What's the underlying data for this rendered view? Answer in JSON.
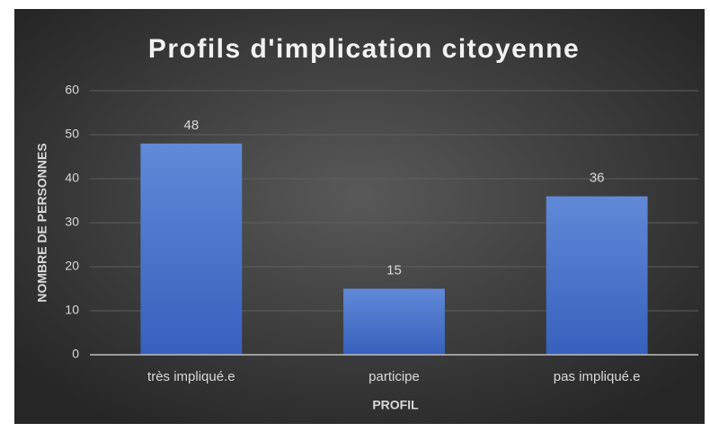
{
  "chart_data": {
    "type": "bar",
    "title": "Profils d'implication citoyenne",
    "x_label": "PROFIL",
    "y_label": "NOMBRE DE PERSONNES",
    "categories": [
      "très impliqué.e",
      "participe",
      "pas impliqué.e"
    ],
    "values": [
      48,
      15,
      36
    ],
    "color": "#4472c4",
    "ylim": [
      0,
      60
    ],
    "yticks": [
      0,
      10,
      20,
      30,
      40,
      50,
      60
    ],
    "grid": true,
    "data_labels": true
  }
}
